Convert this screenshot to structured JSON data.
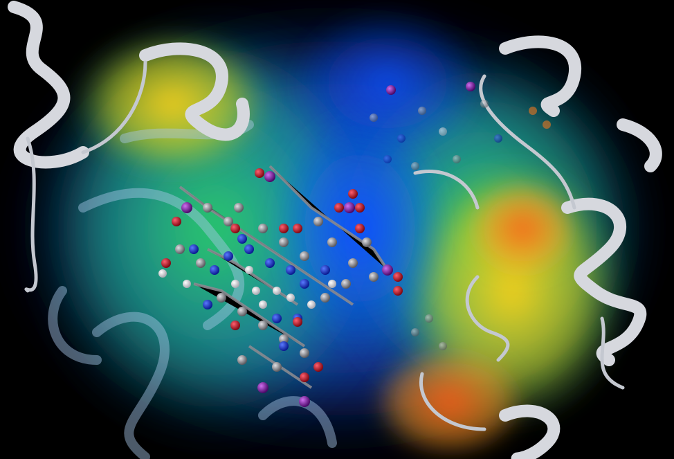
{
  "scene": {
    "subject": "protein-dna-complex",
    "style": "ribbon-and-ball-and-stick-with-volumetric-field",
    "colors": {
      "background": "#000000",
      "ribbon": "#c9ccd2",
      "field_low": "#1a4cff",
      "field_mid": "#23d84a",
      "field_high": "#ffb000",
      "field_peak": "#ff5a1a",
      "carbon": "#8f8f93",
      "hydrogen": "#e8e8ec",
      "nitrogen": "#1034d8",
      "oxygen": "#d8102a",
      "phosphorus": "#9a1ab8"
    }
  }
}
